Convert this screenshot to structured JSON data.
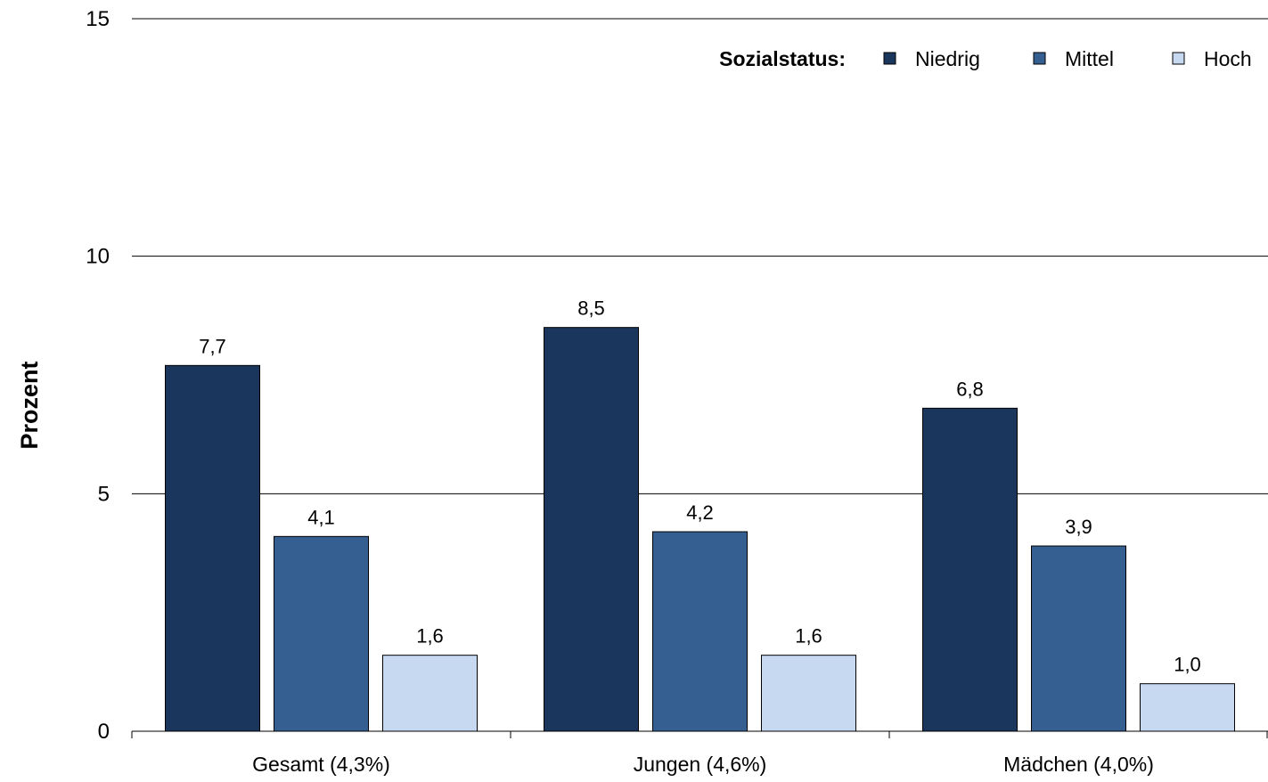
{
  "chart_data": {
    "type": "bar",
    "ylabel": "Prozent",
    "ylim": [
      0,
      15
    ],
    "yticks": [
      "0",
      "5",
      "10",
      "15"
    ],
    "grid": true,
    "legend_position": "top-right",
    "legend_title": "Sozialstatus:",
    "categories": [
      "Gesamt (4,3%)",
      "Jungen (4,6%)",
      "Mädchen (4,0%)"
    ],
    "series": [
      {
        "name": "Niedrig",
        "color": "#1b365d",
        "values": [
          7.7,
          8.5,
          6.8
        ],
        "labels": [
          "7,7",
          "8,5",
          "6,8"
        ]
      },
      {
        "name": "Mittel",
        "color": "#365f91",
        "values": [
          4.1,
          4.2,
          3.9
        ],
        "labels": [
          "4,1",
          "4,2",
          "3,9"
        ]
      },
      {
        "name": "Hoch",
        "color": "#c6d9f0",
        "values": [
          1.6,
          1.6,
          1.0
        ],
        "labels": [
          "1,6",
          "1,6",
          "1,0"
        ]
      }
    ]
  }
}
